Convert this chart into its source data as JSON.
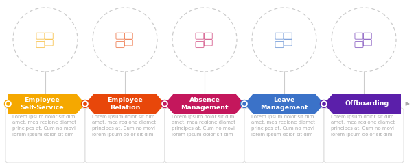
{
  "steps": [
    {
      "title": "Employee\nSelf-Service",
      "color": "#F5A800",
      "text": "Lorem ipsum dolor sit dim\namet, mea regione diamet\nprincipes at. Cum no movi\nlorem ipsum dolor sit dim"
    },
    {
      "title": "Employee\nRelation",
      "color": "#E8470A",
      "text": "Lorem ipsum dolor sit dim\namet, mea regione diamet\nprincipes at. Cum no movi\nlorem ipsum dolor sit dim"
    },
    {
      "title": "Absence\nManagement",
      "color": "#C4175C",
      "text": "Lorem ipsum dolor sit dim\namet, mea regione diamet\nprincipes at. Cum no movi\nlorem ipsum dolor sit dim"
    },
    {
      "title": "Leave\nManagement",
      "color": "#3B72C8",
      "text": "Lorem ipsum dolor sit dim\namet, mea regione diamet\nprincipes at. Cum no movi\nlorem ipsum dolor sit dim"
    },
    {
      "title": "Offboarding",
      "color": "#5B1FAA",
      "text": "Lorem ipsum dolor sit dim\namet, mea regione diamet\nprincipes at. Cum no movi\nlorem ipsum dolor sit dim"
    }
  ],
  "bg_color": "#ffffff",
  "font_title": 6.8,
  "font_body": 5.0,
  "text_color": "#aaaaaa",
  "title_text_color": "#ffffff",
  "border_color": "#dddddd"
}
